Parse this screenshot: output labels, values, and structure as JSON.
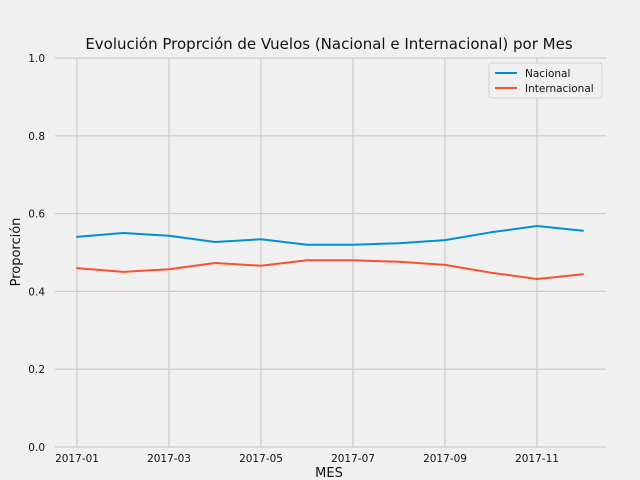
{
  "chart_data": {
    "type": "line",
    "title": "Evolución Proprción de Vuelos (Nacional e Internacional) por Mes",
    "xlabel": "MES",
    "ylabel": "Proporción",
    "x": [
      "2017-01",
      "2017-02",
      "2017-03",
      "2017-04",
      "2017-05",
      "2017-06",
      "2017-07",
      "2017-08",
      "2017-09",
      "2017-10",
      "2017-11",
      "2017-12"
    ],
    "x_tick_labels": [
      "2017-01",
      "2017-03",
      "2017-05",
      "2017-07",
      "2017-09",
      "2017-11"
    ],
    "y_tick_labels": [
      "0.0",
      "0.2",
      "0.4",
      "0.6",
      "0.8",
      "1.0"
    ],
    "ylim": [
      0,
      1.0
    ],
    "grid": true,
    "legend_position": "top-right",
    "series": [
      {
        "name": "Nacional",
        "color": "#008fd5",
        "values": [
          0.54,
          0.55,
          0.543,
          0.527,
          0.534,
          0.52,
          0.52,
          0.524,
          0.532,
          0.552,
          0.568,
          0.556
        ]
      },
      {
        "name": "Internacional",
        "color": "#fc4f30",
        "values": [
          0.46,
          0.45,
          0.457,
          0.473,
          0.466,
          0.48,
          0.48,
          0.476,
          0.468,
          0.448,
          0.432,
          0.444
        ]
      }
    ]
  }
}
